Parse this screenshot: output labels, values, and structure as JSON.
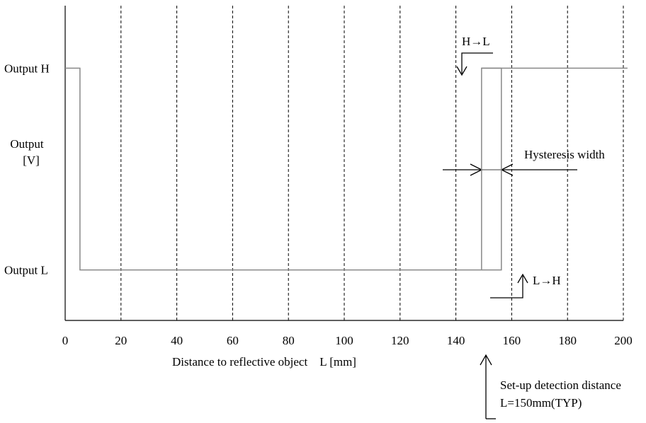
{
  "chart_data": {
    "type": "line",
    "ylabel": [
      "Output",
      "[V]"
    ],
    "xlabel": "Distance to reflective object    L [mm]",
    "xlim": [
      0,
      200
    ],
    "xticks": [
      0,
      20,
      40,
      60,
      80,
      100,
      120,
      140,
      160,
      180,
      200
    ],
    "ylim": [
      -0.25,
      1.31
    ],
    "yticks": [
      {
        "value": 1,
        "label": "Output H"
      },
      {
        "value": 0,
        "label": "Output L"
      }
    ],
    "grid": true,
    "series": [
      {
        "color": "#888888",
        "x": [
          0,
          5.3,
          5.3,
          149.2,
          149.2,
          201.5
        ],
        "values": [
          1,
          1,
          0,
          0,
          1,
          1
        ]
      },
      {
        "color": "#888888",
        "x": [
          149.2,
          156.3,
          156.3,
          149.2
        ],
        "values": [
          1,
          1,
          0,
          0
        ]
      }
    ],
    "annotations": [
      "H→L",
      "L→H",
      "Hysteresis width",
      "Set-up detection distance",
      "L=150mm(TYP)"
    ]
  }
}
